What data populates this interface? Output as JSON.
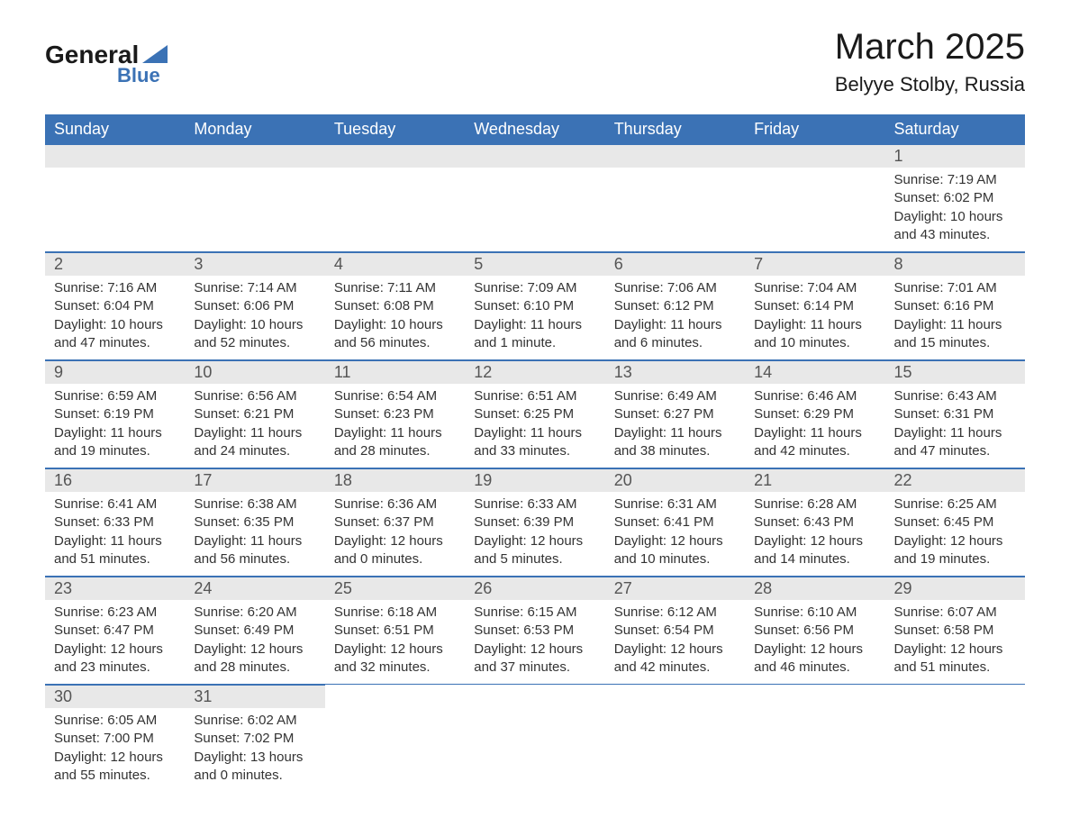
{
  "logo": {
    "text_primary": "General",
    "text_secondary": "Blue",
    "shape_color": "#3b72b5",
    "primary_color": "#1a1a1a",
    "secondary_color": "#3b72b5"
  },
  "title": {
    "month": "March 2025",
    "location": "Belyye Stolby, Russia",
    "month_fontsize": 40,
    "location_fontsize": 22
  },
  "styling": {
    "header_bg": "#3b72b5",
    "header_text_color": "#ffffff",
    "daynum_bg": "#e8e8e8",
    "daynum_text_color": "#555555",
    "body_text_color": "#333333",
    "row_divider_color": "#3b72b5",
    "cell_fontsize": 15,
    "daynum_fontsize": 18,
    "header_fontsize": 18
  },
  "day_headers": [
    "Sunday",
    "Monday",
    "Tuesday",
    "Wednesday",
    "Thursday",
    "Friday",
    "Saturday"
  ],
  "weeks": [
    [
      {
        "empty": true
      },
      {
        "empty": true
      },
      {
        "empty": true
      },
      {
        "empty": true
      },
      {
        "empty": true
      },
      {
        "empty": true
      },
      {
        "num": "1",
        "sunrise": "Sunrise: 7:19 AM",
        "sunset": "Sunset: 6:02 PM",
        "daylight1": "Daylight: 10 hours",
        "daylight2": "and 43 minutes."
      }
    ],
    [
      {
        "num": "2",
        "sunrise": "Sunrise: 7:16 AM",
        "sunset": "Sunset: 6:04 PM",
        "daylight1": "Daylight: 10 hours",
        "daylight2": "and 47 minutes."
      },
      {
        "num": "3",
        "sunrise": "Sunrise: 7:14 AM",
        "sunset": "Sunset: 6:06 PM",
        "daylight1": "Daylight: 10 hours",
        "daylight2": "and 52 minutes."
      },
      {
        "num": "4",
        "sunrise": "Sunrise: 7:11 AM",
        "sunset": "Sunset: 6:08 PM",
        "daylight1": "Daylight: 10 hours",
        "daylight2": "and 56 minutes."
      },
      {
        "num": "5",
        "sunrise": "Sunrise: 7:09 AM",
        "sunset": "Sunset: 6:10 PM",
        "daylight1": "Daylight: 11 hours",
        "daylight2": "and 1 minute."
      },
      {
        "num": "6",
        "sunrise": "Sunrise: 7:06 AM",
        "sunset": "Sunset: 6:12 PM",
        "daylight1": "Daylight: 11 hours",
        "daylight2": "and 6 minutes."
      },
      {
        "num": "7",
        "sunrise": "Sunrise: 7:04 AM",
        "sunset": "Sunset: 6:14 PM",
        "daylight1": "Daylight: 11 hours",
        "daylight2": "and 10 minutes."
      },
      {
        "num": "8",
        "sunrise": "Sunrise: 7:01 AM",
        "sunset": "Sunset: 6:16 PM",
        "daylight1": "Daylight: 11 hours",
        "daylight2": "and 15 minutes."
      }
    ],
    [
      {
        "num": "9",
        "sunrise": "Sunrise: 6:59 AM",
        "sunset": "Sunset: 6:19 PM",
        "daylight1": "Daylight: 11 hours",
        "daylight2": "and 19 minutes."
      },
      {
        "num": "10",
        "sunrise": "Sunrise: 6:56 AM",
        "sunset": "Sunset: 6:21 PM",
        "daylight1": "Daylight: 11 hours",
        "daylight2": "and 24 minutes."
      },
      {
        "num": "11",
        "sunrise": "Sunrise: 6:54 AM",
        "sunset": "Sunset: 6:23 PM",
        "daylight1": "Daylight: 11 hours",
        "daylight2": "and 28 minutes."
      },
      {
        "num": "12",
        "sunrise": "Sunrise: 6:51 AM",
        "sunset": "Sunset: 6:25 PM",
        "daylight1": "Daylight: 11 hours",
        "daylight2": "and 33 minutes."
      },
      {
        "num": "13",
        "sunrise": "Sunrise: 6:49 AM",
        "sunset": "Sunset: 6:27 PM",
        "daylight1": "Daylight: 11 hours",
        "daylight2": "and 38 minutes."
      },
      {
        "num": "14",
        "sunrise": "Sunrise: 6:46 AM",
        "sunset": "Sunset: 6:29 PM",
        "daylight1": "Daylight: 11 hours",
        "daylight2": "and 42 minutes."
      },
      {
        "num": "15",
        "sunrise": "Sunrise: 6:43 AM",
        "sunset": "Sunset: 6:31 PM",
        "daylight1": "Daylight: 11 hours",
        "daylight2": "and 47 minutes."
      }
    ],
    [
      {
        "num": "16",
        "sunrise": "Sunrise: 6:41 AM",
        "sunset": "Sunset: 6:33 PM",
        "daylight1": "Daylight: 11 hours",
        "daylight2": "and 51 minutes."
      },
      {
        "num": "17",
        "sunrise": "Sunrise: 6:38 AM",
        "sunset": "Sunset: 6:35 PM",
        "daylight1": "Daylight: 11 hours",
        "daylight2": "and 56 minutes."
      },
      {
        "num": "18",
        "sunrise": "Sunrise: 6:36 AM",
        "sunset": "Sunset: 6:37 PM",
        "daylight1": "Daylight: 12 hours",
        "daylight2": "and 0 minutes."
      },
      {
        "num": "19",
        "sunrise": "Sunrise: 6:33 AM",
        "sunset": "Sunset: 6:39 PM",
        "daylight1": "Daylight: 12 hours",
        "daylight2": "and 5 minutes."
      },
      {
        "num": "20",
        "sunrise": "Sunrise: 6:31 AM",
        "sunset": "Sunset: 6:41 PM",
        "daylight1": "Daylight: 12 hours",
        "daylight2": "and 10 minutes."
      },
      {
        "num": "21",
        "sunrise": "Sunrise: 6:28 AM",
        "sunset": "Sunset: 6:43 PM",
        "daylight1": "Daylight: 12 hours",
        "daylight2": "and 14 minutes."
      },
      {
        "num": "22",
        "sunrise": "Sunrise: 6:25 AM",
        "sunset": "Sunset: 6:45 PM",
        "daylight1": "Daylight: 12 hours",
        "daylight2": "and 19 minutes."
      }
    ],
    [
      {
        "num": "23",
        "sunrise": "Sunrise: 6:23 AM",
        "sunset": "Sunset: 6:47 PM",
        "daylight1": "Daylight: 12 hours",
        "daylight2": "and 23 minutes."
      },
      {
        "num": "24",
        "sunrise": "Sunrise: 6:20 AM",
        "sunset": "Sunset: 6:49 PM",
        "daylight1": "Daylight: 12 hours",
        "daylight2": "and 28 minutes."
      },
      {
        "num": "25",
        "sunrise": "Sunrise: 6:18 AM",
        "sunset": "Sunset: 6:51 PM",
        "daylight1": "Daylight: 12 hours",
        "daylight2": "and 32 minutes."
      },
      {
        "num": "26",
        "sunrise": "Sunrise: 6:15 AM",
        "sunset": "Sunset: 6:53 PM",
        "daylight1": "Daylight: 12 hours",
        "daylight2": "and 37 minutes."
      },
      {
        "num": "27",
        "sunrise": "Sunrise: 6:12 AM",
        "sunset": "Sunset: 6:54 PM",
        "daylight1": "Daylight: 12 hours",
        "daylight2": "and 42 minutes."
      },
      {
        "num": "28",
        "sunrise": "Sunrise: 6:10 AM",
        "sunset": "Sunset: 6:56 PM",
        "daylight1": "Daylight: 12 hours",
        "daylight2": "and 46 minutes."
      },
      {
        "num": "29",
        "sunrise": "Sunrise: 6:07 AM",
        "sunset": "Sunset: 6:58 PM",
        "daylight1": "Daylight: 12 hours",
        "daylight2": "and 51 minutes."
      }
    ],
    [
      {
        "num": "30",
        "sunrise": "Sunrise: 6:05 AM",
        "sunset": "Sunset: 7:00 PM",
        "daylight1": "Daylight: 12 hours",
        "daylight2": "and 55 minutes."
      },
      {
        "num": "31",
        "sunrise": "Sunrise: 6:02 AM",
        "sunset": "Sunset: 7:02 PM",
        "daylight1": "Daylight: 13 hours",
        "daylight2": "and 0 minutes."
      },
      {
        "empty": true,
        "no_bar": true
      },
      {
        "empty": true,
        "no_bar": true
      },
      {
        "empty": true,
        "no_bar": true
      },
      {
        "empty": true,
        "no_bar": true
      },
      {
        "empty": true,
        "no_bar": true
      }
    ]
  ]
}
